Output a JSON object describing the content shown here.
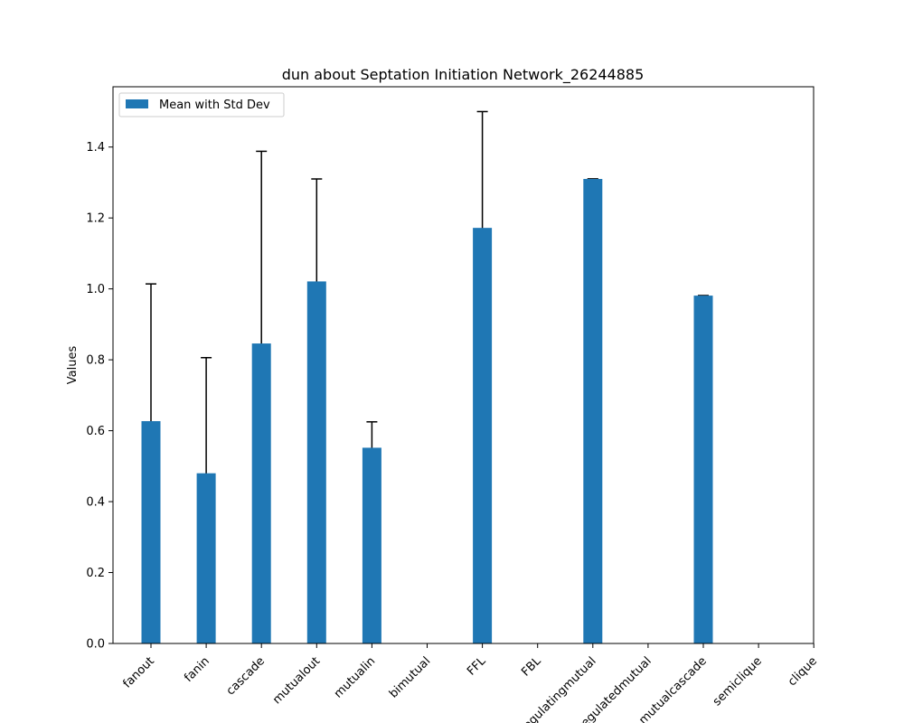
{
  "chart_data": {
    "type": "bar",
    "title": "dun about Septation Initiation Network_26244885",
    "xlabel": "",
    "ylabel": "Values",
    "ylim": [
      0.0,
      1.57
    ],
    "yticks": [
      "0.0",
      "0.2",
      "0.4",
      "0.6",
      "0.8",
      "1.0",
      "1.2",
      "1.4"
    ],
    "categories": [
      "fanout",
      "fanin",
      "cascade",
      "mutualout",
      "mutualin",
      "bimutual",
      "FFL",
      "FBL",
      "regulatingmutual",
      "regulatedmutual",
      "mutualcascade",
      "semiclique",
      "clique"
    ],
    "series": [
      {
        "name": "Mean with Std Dev",
        "color": "#1f77b4",
        "values": [
          0.627,
          0.48,
          0.846,
          1.021,
          0.552,
          0.0,
          1.172,
          0.0,
          1.31,
          0.0,
          0.981,
          0.0,
          0.0
        ],
        "errors": [
          0.387,
          0.326,
          0.542,
          0.289,
          0.073,
          0.0,
          0.328,
          0.0,
          0.0,
          0.0,
          0.0,
          0.0,
          0.0
        ]
      }
    ],
    "legend": {
      "position": "top-left",
      "label": "Mean with Std Dev"
    },
    "grid": false
  }
}
